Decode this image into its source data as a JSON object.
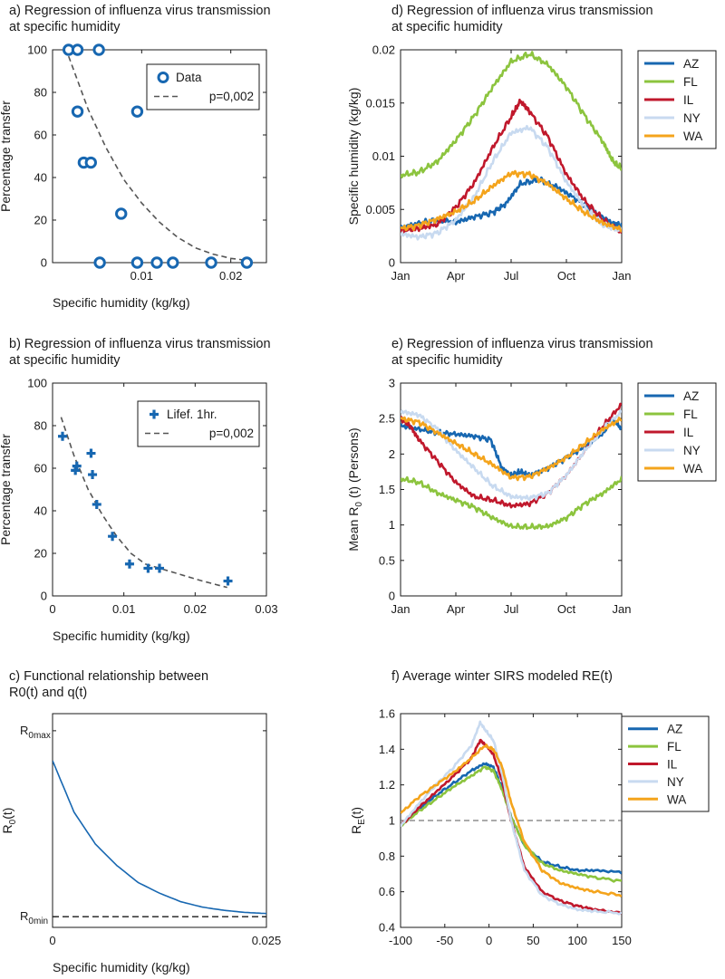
{
  "colors": {
    "AZ": "#1767b1",
    "FL": "#8cc43e",
    "IL": "#c0182c",
    "NY": "#c8daf0",
    "WA": "#f4a41c",
    "primary": "#1767b1",
    "fit": "#555555",
    "axis": "#1a1a1a"
  },
  "chart_data": [
    {
      "panel": "a",
      "type": "scatter",
      "title_lines": [
        "a) Regression of influenza virus transmission",
        "at specific humidity"
      ],
      "xlabel": "Specific humidity (kg/kg)",
      "ylabel": "Percentage transfer",
      "xlim": [
        0,
        0.024
      ],
      "ylim": [
        0,
        100
      ],
      "xticks": [
        0.01,
        0.02
      ],
      "xtick_labels": [
        "0.01",
        "0.02"
      ],
      "yticks": [
        0,
        20,
        40,
        60,
        80,
        100
      ],
      "ytick_labels": [
        "0",
        "20",
        "40",
        "60",
        "80",
        "100"
      ],
      "marker": "circle",
      "legend_position": "top-right",
      "series": [
        {
          "name": "Data",
          "style": "marker",
          "x": [
            0.0018,
            0.0028,
            0.0052,
            0.0028,
            0.0095,
            0.0035,
            0.0043,
            0.0077,
            0.0053,
            0.0095,
            0.0117,
            0.0135,
            0.0178,
            0.0218
          ],
          "y": [
            100,
            100,
            100,
            71,
            71,
            47,
            47,
            23,
            0,
            0,
            0,
            0,
            0,
            0
          ]
        },
        {
          "name": "p=0,002",
          "style": "dashed",
          "x": [
            0.0018,
            0.004,
            0.006,
            0.008,
            0.01,
            0.012,
            0.014,
            0.016,
            0.018,
            0.02,
            0.022
          ],
          "y": [
            97,
            72,
            54,
            39,
            28,
            19,
            12,
            7,
            4,
            2,
            1
          ]
        }
      ]
    },
    {
      "panel": "b",
      "type": "scatter",
      "title_lines": [
        "b) Regression of influenza virus transmission",
        "at specific humidity"
      ],
      "xlabel": "Specific humidity (kg/kg)",
      "ylabel": "Percentage transfer",
      "xlim": [
        0,
        0.03
      ],
      "ylim": [
        0,
        100
      ],
      "xticks": [
        0,
        0.01,
        0.02,
        0.03
      ],
      "xtick_labels": [
        "0",
        "0.01",
        "0.02",
        "0.03"
      ],
      "yticks": [
        0,
        20,
        40,
        60,
        80,
        100
      ],
      "ytick_labels": [
        "0",
        "20",
        "40",
        "60",
        "80",
        "100"
      ],
      "marker": "plus",
      "legend_position": "top-right",
      "series": [
        {
          "name": "Lifef. 1hr.",
          "style": "marker",
          "x": [
            0.0014,
            0.0032,
            0.0034,
            0.0054,
            0.0056,
            0.0062,
            0.0084,
            0.0108,
            0.0134,
            0.015,
            0.0246
          ],
          "y": [
            75,
            59,
            61,
            67,
            57,
            43,
            28,
            15,
            13,
            13,
            7
          ]
        },
        {
          "name": "p=0,002",
          "style": "dashed",
          "x": [
            0.0012,
            0.003,
            0.005,
            0.007,
            0.009,
            0.011,
            0.013,
            0.015,
            0.018,
            0.021,
            0.0245
          ],
          "y": [
            84,
            66,
            50,
            38,
            28,
            20,
            15,
            13,
            10,
            7,
            4
          ]
        }
      ]
    },
    {
      "panel": "c",
      "type": "line",
      "title_lines": [
        "c) Functional relationship between",
        "R0(t) and q(t)"
      ],
      "xlabel": "Specific humidity (kg/kg)",
      "ylabel": "R0(t)",
      "ylabel_main": "R",
      "ylabel_sub": "0",
      "ylabel_tail": "(t)",
      "xlim": [
        0,
        0.025
      ],
      "ylim": [
        0,
        1
      ],
      "xticks": [
        0,
        0.025
      ],
      "xtick_labels": [
        "0",
        "0.025"
      ],
      "yticks": [
        0.05,
        0.92
      ],
      "ytick_main": [
        "R",
        "R"
      ],
      "ytick_sub": [
        "0min",
        "0max"
      ],
      "baseline": 0.05,
      "series": [
        {
          "name": "",
          "style": "solid",
          "x": [
            0,
            0.0025,
            0.005,
            0.0075,
            0.01,
            0.0125,
            0.015,
            0.0175,
            0.02,
            0.0225,
            0.025
          ],
          "y": [
            0.78,
            0.54,
            0.39,
            0.29,
            0.21,
            0.16,
            0.12,
            0.095,
            0.08,
            0.07,
            0.065
          ]
        }
      ]
    },
    {
      "panel": "d",
      "type": "line",
      "title_lines": [
        "d) Regression of influenza virus transmission",
        "at specific humidity"
      ],
      "ylabel": "Specific humidity (kg/kg)",
      "xlim": [
        0,
        12
      ],
      "ylim": [
        0,
        0.02
      ],
      "xticks": [
        0,
        3,
        6,
        9,
        12
      ],
      "xtick_labels": [
        "Jan",
        "Apr",
        "Jul",
        "Oct",
        "Jan"
      ],
      "yticks": [
        0,
        0.005,
        0.01,
        0.015,
        0.02
      ],
      "ytick_labels": [
        "0",
        "0.005",
        "0.01",
        "0.015",
        "0.02"
      ],
      "legend_position": "outside-right",
      "noise": 0.0003,
      "series": [
        {
          "name": "AZ",
          "x": [
            0,
            1,
            2,
            3,
            4,
            5,
            5.7,
            6.5,
            7.5,
            8.5,
            9.5,
            10.5,
            11.5,
            12
          ],
          "y": [
            0.0033,
            0.0037,
            0.004,
            0.0038,
            0.0043,
            0.0047,
            0.0055,
            0.0074,
            0.0078,
            0.0071,
            0.006,
            0.0048,
            0.0037,
            0.0035
          ]
        },
        {
          "name": "FL",
          "x": [
            0,
            1,
            2,
            3,
            4,
            5,
            6,
            7,
            8,
            9,
            10,
            11,
            11.5,
            12
          ],
          "y": [
            0.0082,
            0.0085,
            0.0095,
            0.0115,
            0.0138,
            0.0165,
            0.0189,
            0.0196,
            0.0186,
            0.0165,
            0.0138,
            0.0113,
            0.0096,
            0.0088
          ]
        },
        {
          "name": "IL",
          "x": [
            0,
            1,
            2,
            3,
            4,
            5,
            6,
            6.5,
            7,
            8,
            9,
            10,
            11,
            12
          ],
          "y": [
            0.003,
            0.0032,
            0.0036,
            0.0052,
            0.0075,
            0.0108,
            0.0137,
            0.0152,
            0.0142,
            0.0118,
            0.0083,
            0.0058,
            0.004,
            0.0028
          ]
        },
        {
          "name": "NY",
          "x": [
            0,
            1,
            2,
            3,
            4,
            5,
            6,
            7,
            8,
            9,
            10,
            11,
            12
          ],
          "y": [
            0.0027,
            0.0024,
            0.0028,
            0.004,
            0.0062,
            0.0095,
            0.0122,
            0.0127,
            0.0108,
            0.0076,
            0.0052,
            0.0035,
            0.003
          ]
        },
        {
          "name": "WA",
          "x": [
            0,
            1,
            2,
            3,
            4,
            5,
            6,
            7,
            8,
            9,
            10,
            11,
            12
          ],
          "y": [
            0.0032,
            0.0035,
            0.0041,
            0.0048,
            0.0058,
            0.0072,
            0.0084,
            0.0083,
            0.0074,
            0.006,
            0.0047,
            0.0037,
            0.0031
          ]
        }
      ]
    },
    {
      "panel": "e",
      "type": "line",
      "title_lines": [
        "e) Regression of influenza virus transmission",
        "at specific humidity"
      ],
      "ylabel": "Mean R0 (t) (Persons)",
      "ylabel_main": "Mean R",
      "ylabel_sub": "0",
      "ylabel_tail": " (t) (Persons)",
      "xlim": [
        0,
        12
      ],
      "ylim": [
        0,
        3
      ],
      "xticks": [
        0,
        3,
        6,
        9,
        12
      ],
      "xtick_labels": [
        "Jan",
        "Apr",
        "Jul",
        "Oct",
        "Jan"
      ],
      "yticks": [
        0,
        0.5,
        1,
        1.5,
        2,
        2.5,
        3
      ],
      "ytick_labels": [
        "0",
        "0.5",
        "1",
        "1.5",
        "2",
        "2.5",
        "3"
      ],
      "legend_position": "outside-right",
      "noise": 0.04,
      "series": [
        {
          "name": "AZ",
          "x": [
            0,
            1,
            2,
            3,
            4,
            4.9,
            5.5,
            6,
            6.5,
            7,
            8,
            9,
            10,
            11,
            11.5,
            12
          ],
          "y": [
            2.4,
            2.35,
            2.3,
            2.28,
            2.25,
            2.2,
            1.8,
            1.7,
            1.75,
            1.7,
            1.8,
            1.95,
            2.1,
            2.3,
            2.5,
            2.35
          ]
        },
        {
          "name": "FL",
          "x": [
            0,
            1,
            2,
            3,
            4,
            5,
            6,
            7,
            8,
            9,
            10,
            11,
            12
          ],
          "y": [
            1.65,
            1.6,
            1.45,
            1.35,
            1.25,
            1.1,
            0.98,
            0.97,
            0.98,
            1.1,
            1.3,
            1.45,
            1.65
          ]
        },
        {
          "name": "IL",
          "x": [
            0,
            0.5,
            1,
            2,
            3,
            4,
            5,
            6,
            7,
            8,
            9,
            10,
            11,
            12
          ],
          "y": [
            2.5,
            2.4,
            2.2,
            1.9,
            1.6,
            1.4,
            1.35,
            1.27,
            1.3,
            1.45,
            1.7,
            2.05,
            2.4,
            2.7
          ]
        },
        {
          "name": "NY",
          "x": [
            0,
            1,
            2,
            3,
            4,
            5,
            6,
            7,
            8,
            9,
            10,
            11,
            12
          ],
          "y": [
            2.6,
            2.55,
            2.35,
            2.05,
            1.8,
            1.55,
            1.4,
            1.38,
            1.45,
            1.7,
            2.05,
            2.35,
            2.6
          ]
        },
        {
          "name": "WA",
          "x": [
            0,
            1,
            2,
            3,
            4,
            5,
            6,
            7,
            8,
            9,
            10,
            11,
            12
          ],
          "y": [
            2.5,
            2.45,
            2.3,
            2.15,
            2.0,
            1.85,
            1.67,
            1.68,
            1.8,
            1.95,
            2.15,
            2.35,
            2.5
          ]
        }
      ]
    },
    {
      "panel": "f",
      "type": "line",
      "title_lines": [
        "f) Average winter SIRS modeled RE(t)"
      ],
      "ylabel": "RE(t)",
      "ylabel_main": "R",
      "ylabel_sub": "E",
      "ylabel_tail": "(t)",
      "xlim": [
        -100,
        150
      ],
      "ylim": [
        0.4,
        1.6
      ],
      "xticks": [
        -100,
        -50,
        0,
        50,
        100,
        150
      ],
      "xtick_labels": [
        "-100",
        "-50",
        "0",
        "50",
        "100",
        "150"
      ],
      "yticks": [
        0.4,
        0.6,
        0.8,
        1,
        1.2,
        1.4,
        1.6
      ],
      "ytick_labels": [
        "0.4",
        "0.6",
        "0.8",
        "1",
        "1.2",
        "1.4",
        "1.6"
      ],
      "reference_line": 1,
      "legend_position": "top-right",
      "noise": 0.008,
      "series": [
        {
          "name": "AZ",
          "x": [
            -100,
            -80,
            -60,
            -40,
            -20,
            -5,
            5,
            15,
            25,
            40,
            60,
            80,
            100,
            120,
            150
          ],
          "y": [
            0.97,
            1.06,
            1.14,
            1.21,
            1.28,
            1.32,
            1.3,
            1.18,
            1.02,
            0.86,
            0.77,
            0.74,
            0.72,
            0.72,
            0.71
          ]
        },
        {
          "name": "FL",
          "x": [
            -100,
            -80,
            -60,
            -40,
            -20,
            -5,
            5,
            15,
            25,
            40,
            60,
            80,
            100,
            120,
            150
          ],
          "y": [
            0.97,
            1.05,
            1.12,
            1.19,
            1.25,
            1.3,
            1.28,
            1.17,
            1.02,
            0.86,
            0.76,
            0.72,
            0.7,
            0.68,
            0.66
          ]
        },
        {
          "name": "IL",
          "x": [
            -100,
            -80,
            -60,
            -40,
            -20,
            -10,
            -3,
            5,
            15,
            25,
            40,
            60,
            80,
            100,
            120,
            150
          ],
          "y": [
            0.97,
            1.07,
            1.16,
            1.25,
            1.35,
            1.45,
            1.42,
            1.37,
            1.22,
            1.0,
            0.74,
            0.6,
            0.55,
            0.52,
            0.5,
            0.48
          ]
        },
        {
          "name": "NY",
          "x": [
            -100,
            -80,
            -60,
            -40,
            -20,
            -10,
            -3,
            5,
            15,
            25,
            40,
            60,
            80,
            100,
            120,
            150
          ],
          "y": [
            0.97,
            1.09,
            1.2,
            1.3,
            1.42,
            1.55,
            1.5,
            1.45,
            1.26,
            1.0,
            0.72,
            0.58,
            0.53,
            0.5,
            0.49,
            0.48
          ]
        },
        {
          "name": "WA",
          "x": [
            -100,
            -80,
            -60,
            -40,
            -20,
            -5,
            5,
            15,
            25,
            40,
            60,
            80,
            100,
            120,
            150
          ],
          "y": [
            1.04,
            1.13,
            1.2,
            1.27,
            1.35,
            1.42,
            1.4,
            1.3,
            1.1,
            0.88,
            0.72,
            0.65,
            0.62,
            0.6,
            0.58
          ]
        }
      ]
    }
  ]
}
